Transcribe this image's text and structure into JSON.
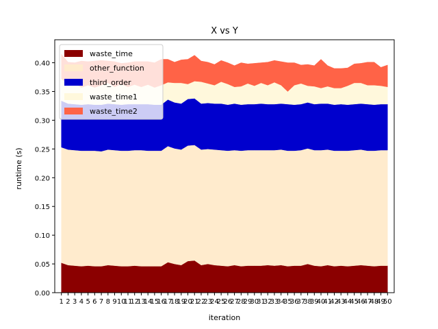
{
  "chart_data": {
    "type": "area",
    "title": "X vs Y",
    "xlabel": "iteration",
    "ylabel": "runtime (s)",
    "x": [
      1,
      2,
      3,
      4,
      5,
      6,
      7,
      8,
      9,
      10,
      11,
      12,
      13,
      14,
      15,
      16,
      17,
      18,
      19,
      20,
      21,
      22,
      23,
      24,
      25,
      26,
      27,
      28,
      29,
      30,
      31,
      32,
      33,
      34,
      35,
      36,
      37,
      38,
      39,
      40,
      41,
      42,
      43,
      44,
      45,
      46,
      47,
      48,
      49,
      50
    ],
    "ylim": [
      0,
      0.44
    ],
    "yticks": [
      0.0,
      0.05,
      0.1,
      0.15,
      0.2,
      0.25,
      0.3,
      0.35,
      0.4
    ],
    "ytick_labels": [
      "0.00",
      "0.05",
      "0.10",
      "0.15",
      "0.20",
      "0.25",
      "0.30",
      "0.35",
      "0.40"
    ],
    "grid": false,
    "stacked": true,
    "legend": {
      "position": "top-left"
    },
    "series": [
      {
        "name": "waste_time",
        "color": "#8b0000",
        "values": [
          0.052,
          0.048,
          0.047,
          0.046,
          0.047,
          0.046,
          0.046,
          0.048,
          0.047,
          0.046,
          0.046,
          0.047,
          0.046,
          0.046,
          0.046,
          0.046,
          0.053,
          0.05,
          0.048,
          0.055,
          0.056,
          0.048,
          0.05,
          0.048,
          0.047,
          0.046,
          0.048,
          0.046,
          0.047,
          0.047,
          0.047,
          0.048,
          0.047,
          0.048,
          0.046,
          0.047,
          0.047,
          0.05,
          0.047,
          0.046,
          0.048,
          0.046,
          0.047,
          0.046,
          0.047,
          0.048,
          0.047,
          0.046,
          0.047,
          0.047
        ]
      },
      {
        "name": "other_function",
        "color": "#ffebcd",
        "values": [
          0.201,
          0.201,
          0.201,
          0.201,
          0.2,
          0.201,
          0.2,
          0.201,
          0.201,
          0.201,
          0.201,
          0.201,
          0.202,
          0.201,
          0.201,
          0.201,
          0.202,
          0.201,
          0.201,
          0.201,
          0.201,
          0.201,
          0.2,
          0.201,
          0.201,
          0.201,
          0.2,
          0.201,
          0.201,
          0.201,
          0.201,
          0.2,
          0.201,
          0.201,
          0.201,
          0.2,
          0.201,
          0.201,
          0.201,
          0.202,
          0.201,
          0.201,
          0.2,
          0.201,
          0.201,
          0.201,
          0.2,
          0.201,
          0.201,
          0.201
        ]
      },
      {
        "name": "third_order",
        "color": "#0000cd",
        "values": [
          0.081,
          0.08,
          0.08,
          0.08,
          0.081,
          0.08,
          0.081,
          0.08,
          0.08,
          0.08,
          0.081,
          0.08,
          0.08,
          0.081,
          0.08,
          0.08,
          0.081,
          0.08,
          0.08,
          0.081,
          0.081,
          0.08,
          0.08,
          0.08,
          0.081,
          0.08,
          0.081,
          0.08,
          0.08,
          0.08,
          0.081,
          0.08,
          0.08,
          0.08,
          0.081,
          0.08,
          0.08,
          0.08,
          0.08,
          0.081,
          0.08,
          0.08,
          0.081,
          0.08,
          0.08,
          0.08,
          0.081,
          0.08,
          0.08,
          0.08
        ]
      },
      {
        "name": "waste_time1",
        "color": "#fff8dc",
        "values": [
          0.038,
          0.034,
          0.036,
          0.03,
          0.033,
          0.03,
          0.034,
          0.036,
          0.03,
          0.036,
          0.03,
          0.034,
          0.03,
          0.034,
          0.03,
          0.034,
          0.03,
          0.034,
          0.036,
          0.026,
          0.03,
          0.038,
          0.034,
          0.032,
          0.038,
          0.036,
          0.029,
          0.032,
          0.036,
          0.032,
          0.036,
          0.033,
          0.038,
          0.032,
          0.022,
          0.034,
          0.036,
          0.029,
          0.031,
          0.027,
          0.03,
          0.029,
          0.028,
          0.033,
          0.037,
          0.036,
          0.033,
          0.034,
          0.032,
          0.03
        ]
      },
      {
        "name": "waste_time2",
        "color": "#ff6347",
        "values": [
          0.043,
          0.038,
          0.036,
          0.046,
          0.041,
          0.046,
          0.043,
          0.038,
          0.044,
          0.036,
          0.042,
          0.04,
          0.044,
          0.04,
          0.043,
          0.045,
          0.04,
          0.036,
          0.04,
          0.043,
          0.045,
          0.036,
          0.037,
          0.036,
          0.037,
          0.037,
          0.037,
          0.041,
          0.034,
          0.039,
          0.035,
          0.04,
          0.038,
          0.041,
          0.05,
          0.039,
          0.032,
          0.037,
          0.036,
          0.05,
          0.036,
          0.034,
          0.034,
          0.031,
          0.033,
          0.034,
          0.04,
          0.04,
          0.032,
          0.038
        ]
      }
    ]
  }
}
